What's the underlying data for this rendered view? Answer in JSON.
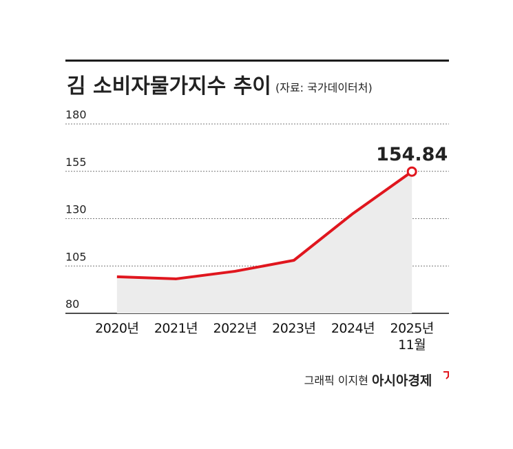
{
  "chart_data": {
    "type": "line",
    "title": "김 소비자물가지수 추이",
    "subtitle": "(자료: 국가데이터처)",
    "categories": [
      "2020년",
      "2021년",
      "2022년",
      "2023년",
      "2024년",
      "2025년\n11월"
    ],
    "values": [
      99.3,
      98.2,
      102.2,
      108,
      132.7,
      154.84
    ],
    "color": "#e0161e",
    "area_color": "#ececec",
    "ylim": [
      80,
      180
    ],
    "yticks": [
      80,
      105,
      130,
      155,
      180
    ],
    "grid": true,
    "credit": "그래픽 이지현",
    "publisher": "아시아경제"
  }
}
